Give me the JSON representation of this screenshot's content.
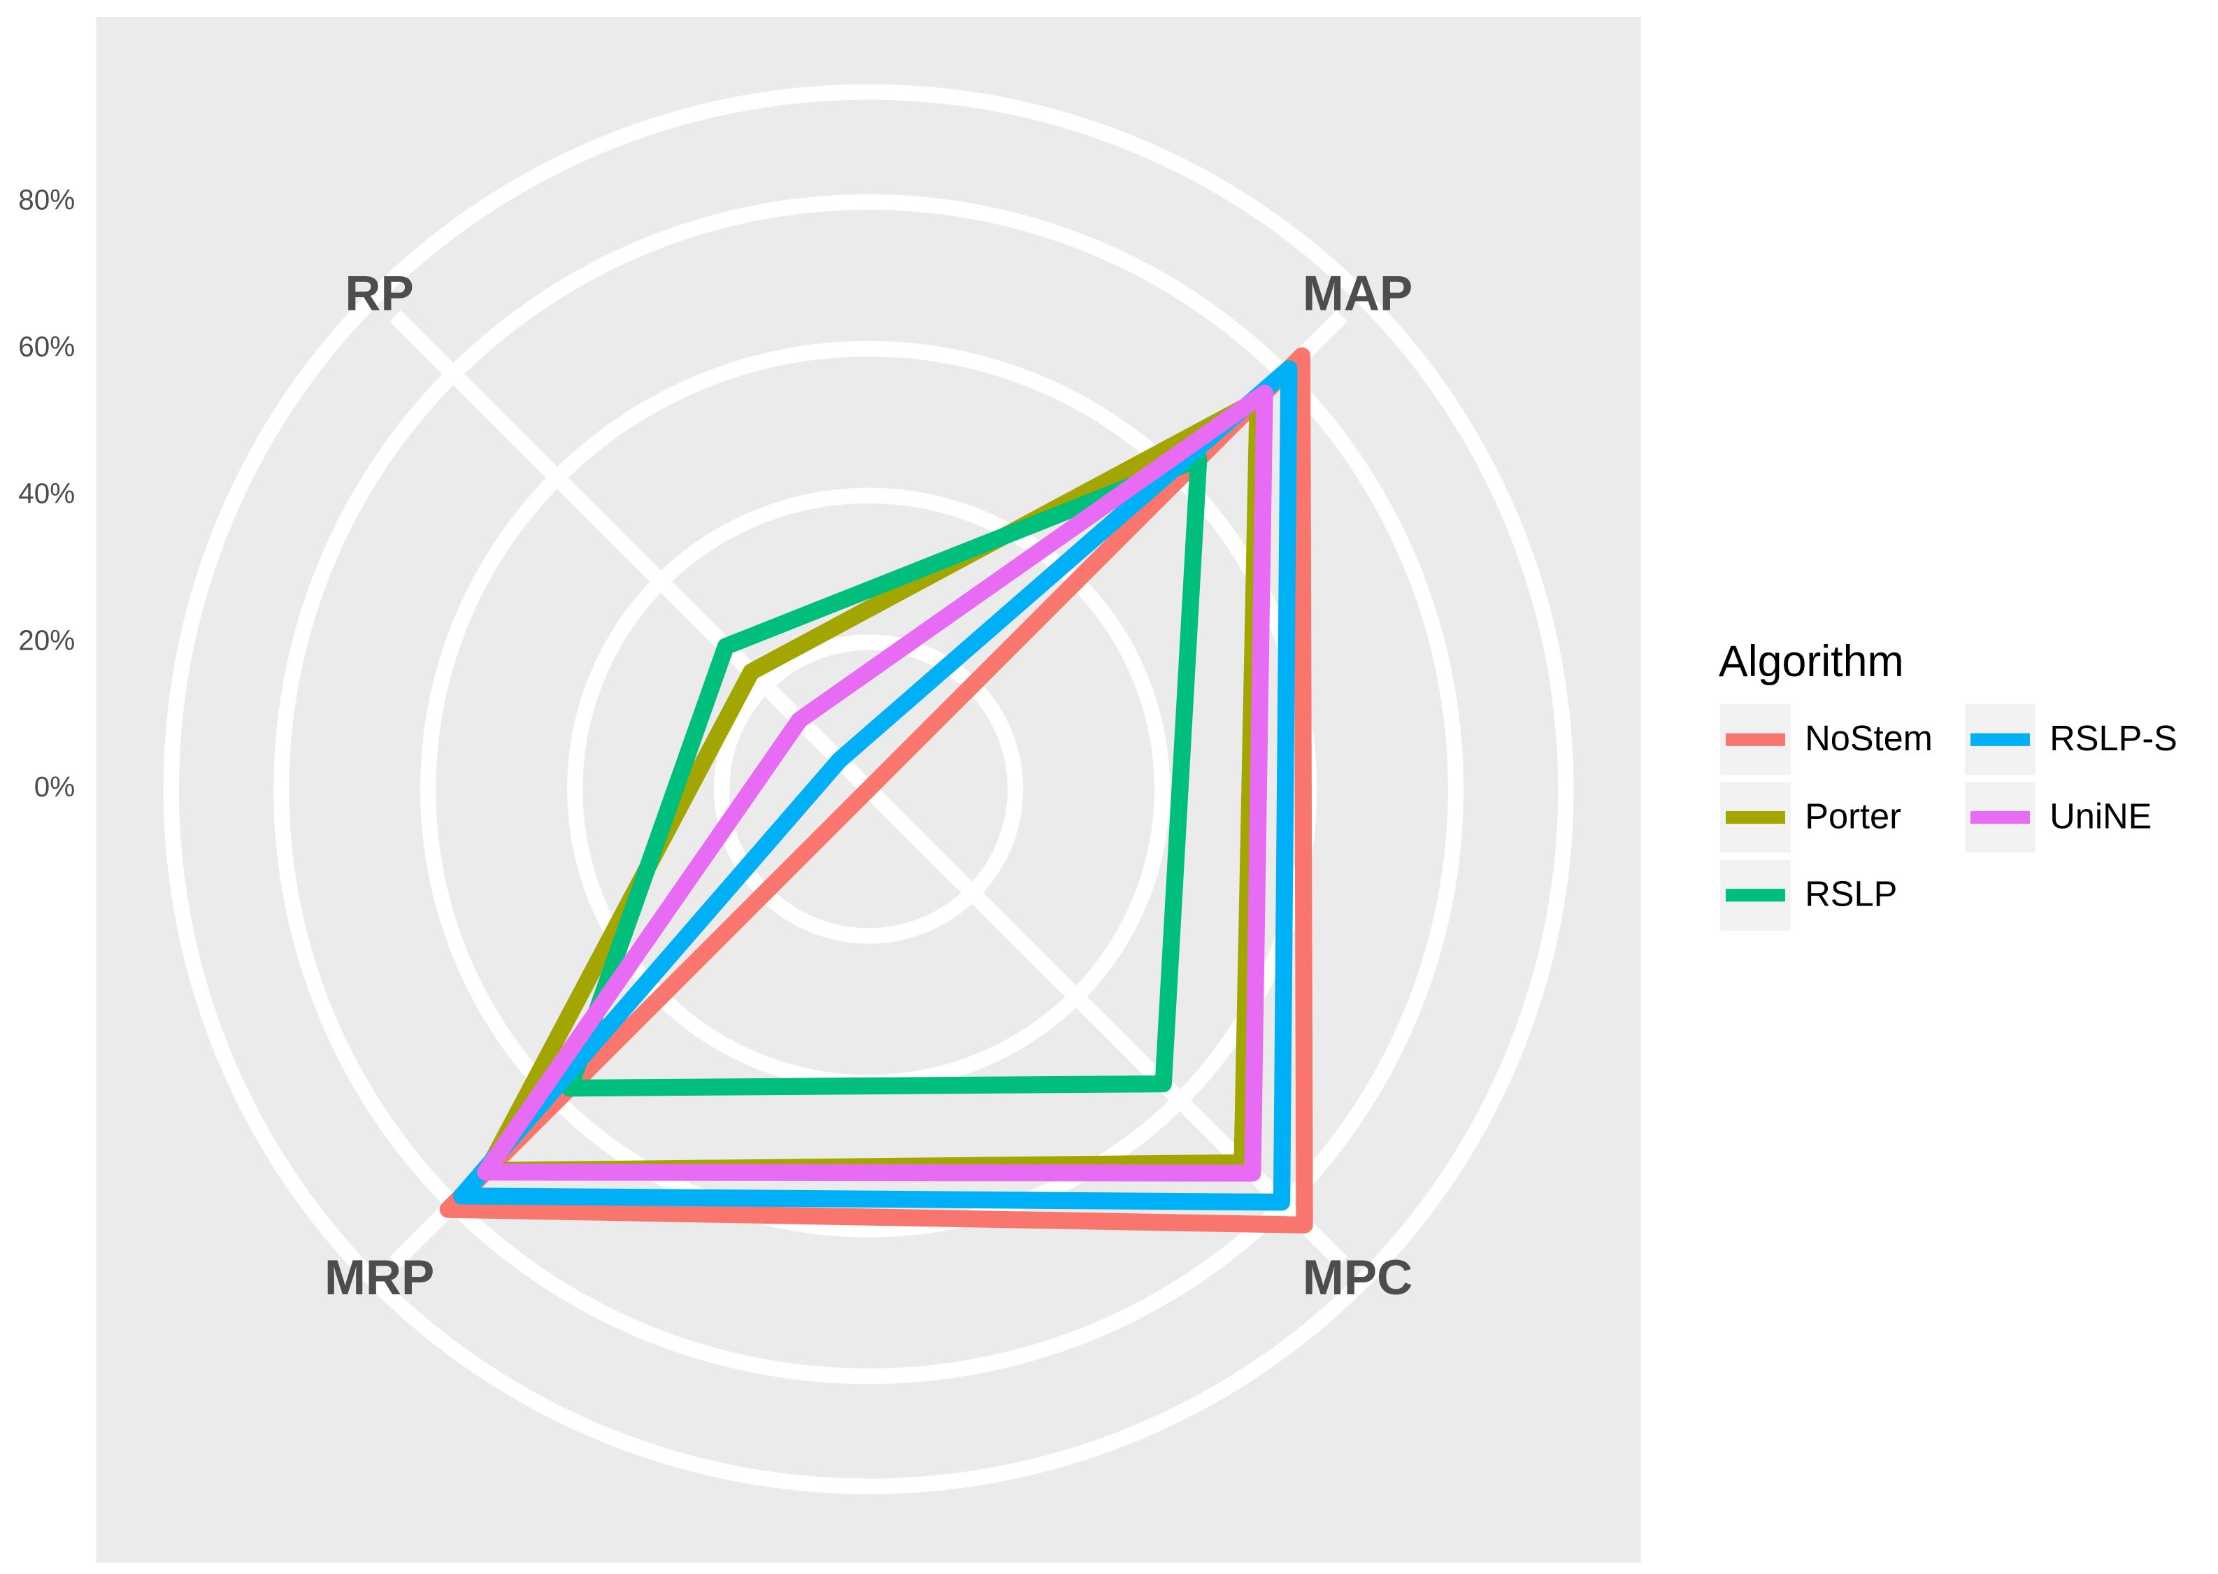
{
  "chart_data": {
    "type": "radar",
    "categories": [
      "RP",
      "MAP",
      "MPC",
      "MRP"
    ],
    "ylim": [
      0,
      95
    ],
    "yticks": [
      {
        "value": 0,
        "label": "0%"
      },
      {
        "value": 20,
        "label": "20%"
      },
      {
        "value": 40,
        "label": "40%"
      },
      {
        "value": 60,
        "label": "60%"
      },
      {
        "value": 80,
        "label": "80%"
      }
    ],
    "grid": true,
    "legend_title": "Algorithm",
    "legend_position": "right",
    "series": [
      {
        "name": "NoStem",
        "color": "#F8766D",
        "values": [
          0,
          83.5,
          84,
          81
        ]
      },
      {
        "name": "Porter",
        "color": "#A3A500",
        "values": [
          22.6,
          75,
          72,
          73.5
        ]
      },
      {
        "name": "RSLP",
        "color": "#00BF7D",
        "values": [
          27.5,
          63.6,
          56.8,
          57.6
        ]
      },
      {
        "name": "RSLP-S",
        "color": "#00B0F6",
        "values": [
          5.6,
          81,
          79.6,
          78.4
        ]
      },
      {
        "name": "UniNE",
        "color": "#E76BF3",
        "values": [
          13.3,
          76.3,
          74,
          73.8
        ]
      }
    ]
  }
}
